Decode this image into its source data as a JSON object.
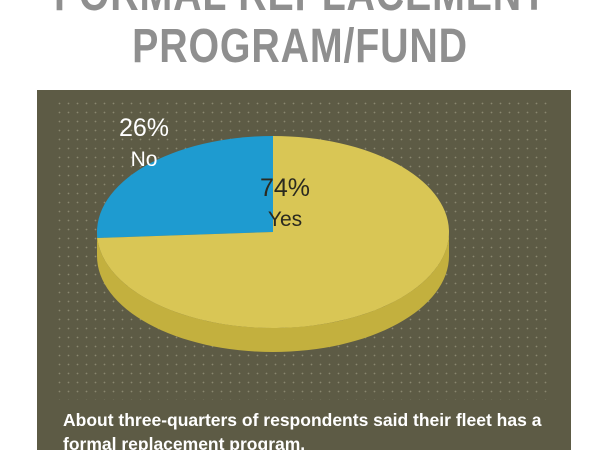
{
  "title_lines": [
    "FORMAL REPLACEMENT",
    "PROGRAM/FUND"
  ],
  "caption": "About three-quarters of respondents said their fleet has a formal replacement program.",
  "colors": {
    "background": "#ffffff",
    "panel": "#5d5b45",
    "title": "#8f8f8f",
    "yes_slice": "#d9c655",
    "yes_side": "#c3b03e",
    "no_slice": "#1e9bd0",
    "no_side": "#1880ad"
  },
  "chart_data": {
    "type": "pie",
    "style": "3d-tilted",
    "slices": [
      {
        "label": "No",
        "value": 26,
        "value_text": "26%",
        "color": "#1e9bd0"
      },
      {
        "label": "Yes",
        "value": 74,
        "value_text": "74%",
        "color": "#d9c655"
      }
    ]
  }
}
